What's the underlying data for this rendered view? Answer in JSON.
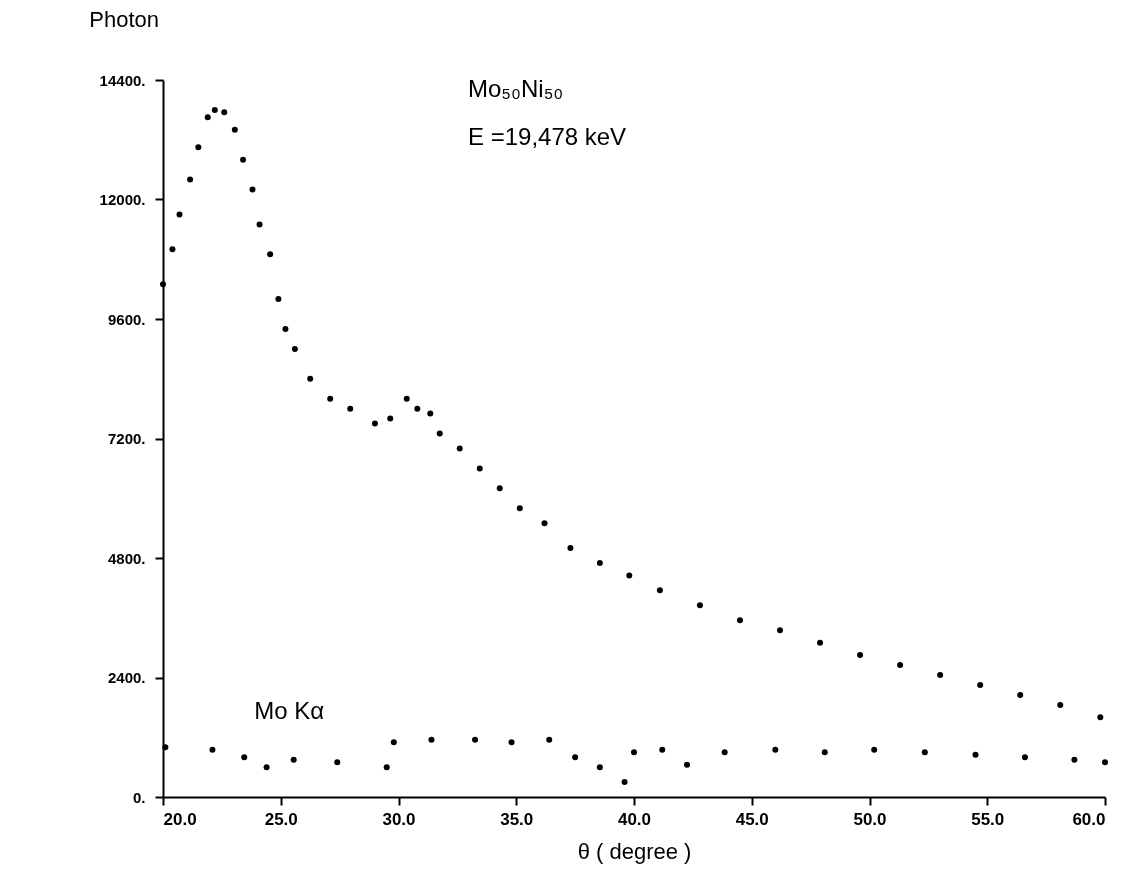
{
  "chart_data": {
    "type": "scatter",
    "xlabel": "θ ( degree )",
    "ylabel": "Photon",
    "annotations": [
      "Mo₅₀Ni₅₀",
      "E =19,478  keV"
    ],
    "xlim": [
      20,
      60
    ],
    "ylim": [
      0,
      14400
    ],
    "xticks": [
      {
        "value": 20,
        "label": "20.0"
      },
      {
        "value": 25,
        "label": "25.0"
      },
      {
        "value": 30,
        "label": "30.0"
      },
      {
        "value": 35,
        "label": "35.0"
      },
      {
        "value": 40,
        "label": "40.0"
      },
      {
        "value": 45,
        "label": "45.0"
      },
      {
        "value": 50,
        "label": "50.0"
      },
      {
        "value": 55,
        "label": "55.0"
      },
      {
        "value": 60,
        "label": "60.0"
      }
    ],
    "yticks": [
      {
        "value": 0,
        "label": "0."
      },
      {
        "value": 2400,
        "label": "2400."
      },
      {
        "value": 4800,
        "label": "4800."
      },
      {
        "value": 7200,
        "label": "7200."
      },
      {
        "value": 9600,
        "label": "9600."
      },
      {
        "value": 12000,
        "label": "12000."
      },
      {
        "value": 14400,
        "label": "14400."
      }
    ],
    "grid": false,
    "legend": false,
    "marker": "circle",
    "series": [
      {
        "color": "#000000",
        "x": [
          20.0,
          20.4,
          20.7,
          21.15,
          21.5,
          21.9,
          22.2,
          22.6,
          23.05,
          23.4,
          23.8,
          24.1,
          24.55,
          24.9,
          25.2,
          25.6,
          26.25,
          27.1,
          27.95,
          29.0,
          29.65,
          30.35,
          30.8,
          31.35,
          31.75,
          32.6,
          33.45,
          34.3,
          35.15,
          36.2,
          37.3,
          38.55,
          39.8,
          41.1,
          42.8,
          44.5,
          46.2,
          47.9,
          49.6,
          51.3,
          53.0,
          54.7,
          56.4,
          58.1,
          59.8
        ],
        "values": [
          10300,
          11000,
          11700,
          12400,
          13050,
          13650,
          13800,
          13750,
          13400,
          12800,
          12200,
          11500,
          10900,
          10000,
          9400,
          9000,
          8400,
          8000,
          7800,
          7500,
          7600,
          8000,
          7800,
          7700,
          7300,
          7000,
          6600,
          6200,
          5800,
          5500,
          5000,
          4700,
          4450,
          4150,
          3850,
          3550,
          3350,
          3100,
          2850,
          2650,
          2450,
          2250,
          2050,
          1850,
          1600
        ]
      },
      {
        "name": "Mo  Kα",
        "color": "#000000",
        "x": [
          20.1,
          22.1,
          23.45,
          24.4,
          25.55,
          27.4,
          29.5,
          29.8,
          31.4,
          33.25,
          34.8,
          36.4,
          37.5,
          38.55,
          39.6,
          40.0,
          41.2,
          42.25,
          43.85,
          46.0,
          48.1,
          50.2,
          52.35,
          54.5,
          56.6,
          58.7,
          60.0
        ],
        "values": [
          1000,
          950,
          800,
          600,
          750,
          700,
          600,
          1100,
          1150,
          1150,
          1100,
          1150,
          800,
          600,
          300,
          900,
          950,
          650,
          900,
          950,
          900,
          950,
          900,
          850,
          800,
          750,
          700
        ]
      }
    ]
  }
}
